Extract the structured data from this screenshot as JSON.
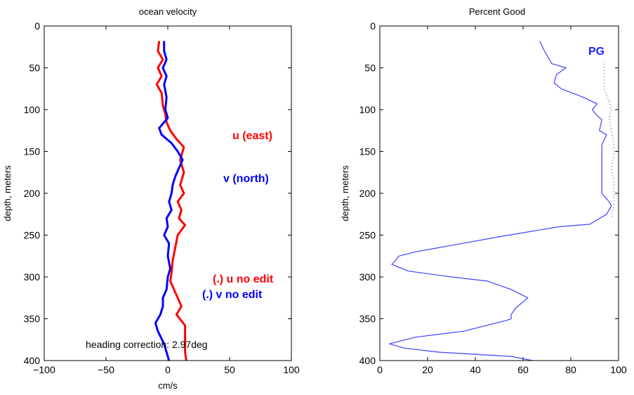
{
  "chart_data": [
    {
      "type": "line",
      "title": "ocean velocity",
      "xlabel": "cm/s",
      "ylabel": "depth, meters",
      "xlim": [
        -100,
        100
      ],
      "ylim": [
        0,
        400
      ],
      "y_reversed": true,
      "grid": false,
      "xticks": [
        -100,
        -50,
        0,
        50,
        100
      ],
      "yticks": [
        0,
        50,
        100,
        150,
        200,
        250,
        300,
        350,
        400
      ],
      "series": [
        {
          "color": "#ff0000",
          "points": [
            [
              -7,
              18
            ],
            [
              -8,
              30
            ],
            [
              -4,
              40
            ],
            [
              -8,
              50
            ],
            [
              -5,
              60
            ],
            [
              -9,
              70
            ],
            [
              -5,
              80
            ],
            [
              -4,
              95
            ],
            [
              -2,
              105
            ],
            [
              -1,
              115
            ],
            [
              2,
              125
            ],
            [
              7,
              135
            ],
            [
              13,
              145
            ],
            [
              10,
              160
            ],
            [
              13,
              175
            ],
            [
              10,
              190
            ],
            [
              13,
              200
            ],
            [
              8,
              210
            ],
            [
              11,
              220
            ],
            [
              9,
              230
            ],
            [
              14,
              238
            ],
            [
              8,
              250
            ],
            [
              6,
              265
            ],
            [
              4,
              280
            ],
            [
              3,
              295
            ],
            [
              2,
              305
            ],
            [
              5,
              315
            ],
            [
              8,
              325
            ],
            [
              11,
              335
            ],
            [
              7,
              345
            ],
            [
              14,
              358
            ],
            [
              14,
              372
            ],
            [
              14,
              390
            ],
            [
              15,
              400
            ]
          ]
        },
        {
          "color": "#0000ff",
          "points": [
            [
              -3,
              18
            ],
            [
              -3,
              30
            ],
            [
              -1,
              40
            ],
            [
              -4,
              50
            ],
            [
              -1,
              60
            ],
            [
              -3,
              70
            ],
            [
              -1,
              85
            ],
            [
              -2,
              100
            ],
            [
              0,
              110
            ],
            [
              -7,
              122
            ],
            [
              -5,
              130
            ],
            [
              3,
              140
            ],
            [
              8,
              150
            ],
            [
              12,
              160
            ],
            [
              9,
              170
            ],
            [
              6,
              180
            ],
            [
              4,
              190
            ],
            [
              3,
              200
            ],
            [
              1,
              210
            ],
            [
              3,
              220
            ],
            [
              -1,
              230
            ],
            [
              0,
              240
            ],
            [
              -3,
              250
            ],
            [
              1,
              260
            ],
            [
              0,
              275
            ],
            [
              2,
              290
            ],
            [
              0,
              300
            ],
            [
              -1,
              315
            ],
            [
              -4,
              325
            ],
            [
              -4,
              335
            ],
            [
              -6,
              345
            ],
            [
              -10,
              355
            ],
            [
              -8,
              365
            ],
            [
              -3,
              380
            ],
            [
              -1,
              390
            ],
            [
              1,
              400
            ]
          ]
        }
      ],
      "annotations": [
        {
          "text": "u (east)",
          "color": "#ff0000"
        },
        {
          "text": "v (north)",
          "color": "#0000ff"
        },
        {
          "text": "(.) u no edit",
          "color": "#ff0000"
        },
        {
          "text": "(.) v no edit",
          "color": "#0000ff"
        },
        {
          "text": "heading correction: 2.97deg",
          "color": "#000000"
        }
      ]
    },
    {
      "type": "line",
      "title": "Percent Good",
      "xlabel": "",
      "ylabel": "depth, meters",
      "xlim": [
        0,
        100
      ],
      "ylim": [
        0,
        400
      ],
      "y_reversed": true,
      "grid": false,
      "xticks": [
        0,
        20,
        40,
        60,
        80,
        100
      ],
      "yticks": [
        0,
        50,
        100,
        150,
        200,
        250,
        300,
        350,
        400
      ],
      "series": [
        {
          "color": "#4040ff",
          "style": "solid",
          "points": [
            [
              67,
              18
            ],
            [
              69,
              30
            ],
            [
              72,
              45
            ],
            [
              78,
              50
            ],
            [
              74,
              58
            ],
            [
              73,
              68
            ],
            [
              76,
              75
            ],
            [
              85,
              85
            ],
            [
              91,
              93
            ],
            [
              89,
              100
            ],
            [
              91,
              107
            ],
            [
              93,
              112
            ],
            [
              92,
              125
            ],
            [
              95,
              130
            ],
            [
              93,
              142
            ],
            [
              93,
              160
            ],
            [
              93,
              180
            ],
            [
              93,
              200
            ],
            [
              96,
              210
            ],
            [
              97,
              215
            ],
            [
              95,
              225
            ],
            [
              88,
              237
            ],
            [
              75,
              240
            ],
            [
              50,
              252
            ],
            [
              15,
              270
            ],
            [
              8,
              275
            ],
            [
              6,
              282
            ],
            [
              5,
              285
            ],
            [
              12,
              293
            ],
            [
              30,
              300
            ],
            [
              45,
              305
            ],
            [
              55,
              315
            ],
            [
              62,
              325
            ],
            [
              57,
              337
            ],
            [
              55,
              345
            ],
            [
              55,
              350
            ],
            [
              53,
              352
            ],
            [
              35,
              365
            ],
            [
              15,
              372
            ],
            [
              4,
              380
            ],
            [
              10,
              385
            ],
            [
              25,
              390
            ],
            [
              55,
              395
            ],
            [
              64,
              400
            ]
          ]
        },
        {
          "color": "#8080c0",
          "style": "dotted",
          "points": [
            [
              94,
              45
            ],
            [
              94,
              60
            ],
            [
              94,
              75
            ],
            [
              96,
              90
            ],
            [
              97,
              100
            ],
            [
              96,
              110
            ],
            [
              97,
              125
            ],
            [
              98,
              140
            ],
            [
              98,
              155
            ],
            [
              97,
              170
            ],
            [
              98,
              185
            ],
            [
              98,
              200
            ],
            [
              98,
              215
            ],
            [
              97,
              230
            ]
          ]
        }
      ],
      "annotations": [
        {
          "text": "PG",
          "color": "#2020ff"
        }
      ]
    }
  ]
}
